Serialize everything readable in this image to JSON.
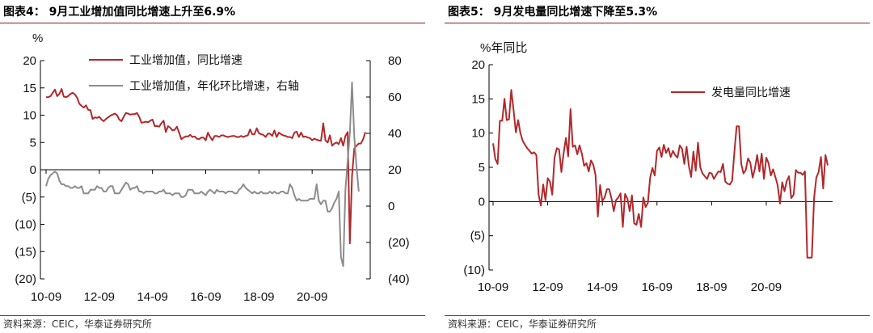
{
  "panels": [
    {
      "title": "图表4：  9月工业增加值同比增速上升至6.9%",
      "source": "资料来源：CEIC，华泰证券研究所",
      "unit_label": "%"
    },
    {
      "title": "图表5：  9月发电量同比增速下降至5.3%",
      "source": "资料来源：CEIC，华泰证券研究所",
      "unit_label": "%年同比"
    }
  ],
  "chart_data": [
    {
      "type": "line",
      "title": "9月工业增加值同比增速上升至6.9%",
      "ylabel": "%",
      "x_start": "2010-09",
      "x_ticks": [
        "10-09",
        "12-09",
        "14-09",
        "16-09",
        "18-09",
        "20-09"
      ],
      "ylim": [
        -20,
        20
      ],
      "yticks": [
        "20",
        "15",
        "10",
        "5",
        "0",
        "(5)",
        "(10)",
        "(15)",
        "(20)"
      ],
      "y2lim": [
        -40,
        80
      ],
      "y2ticks": [
        "80",
        "60",
        "40",
        "20",
        "0",
        "(20)",
        "(40)"
      ],
      "legend_placement": "top-center",
      "series": [
        {
          "name": "工业增加值，同比增速",
          "axis": "left",
          "color": "#b2282b",
          "values": [
            13.3,
            13.3,
            13.5,
            14.1,
            14.7,
            13.5,
            13.9,
            14.8,
            13.4,
            13.3,
            13.5,
            13.9,
            14.1,
            13.8,
            13.2,
            12.1,
            11.7,
            11.4,
            11.8,
            11.0,
            10.9,
            9.3,
            9.6,
            9.5,
            9.7,
            9.2,
            8.9,
            9.3,
            9.6,
            9.9,
            10.1,
            10.3,
            10.0,
            9.2,
            8.9,
            9.7,
            10.4,
            10.3,
            10.1,
            10.2,
            10.2,
            10.4,
            9.7,
            8.6,
            8.7,
            8.8,
            8.7,
            9.0,
            9.2,
            8.0,
            8.0,
            7.9,
            8.5,
            9.0,
            6.9,
            8.0,
            7.7,
            7.2,
            7.3,
            7.9,
            6.8,
            5.6,
            5.9,
            6.1,
            6.1,
            6.4,
            6.0,
            6.1,
            5.7,
            5.6,
            5.9,
            5.9,
            5.4,
            6.8,
            6.0,
            5.4,
            6.2,
            6.2,
            6.0,
            6.3,
            6.3,
            6.1,
            6.0,
            6.1,
            6.2,
            6.2,
            6.0,
            6.0,
            6.2,
            6.0,
            6.2,
            6.3,
            7.4,
            6.5,
            6.5,
            7.6,
            6.7,
            6.5,
            6.4,
            6.0,
            6.6,
            6.6,
            6.2,
            7.2,
            6.0,
            6.8,
            6.5,
            6.3,
            6.2,
            6.0,
            6.0,
            5.8,
            6.8,
            7.0,
            6.0,
            6.8,
            6.0,
            6.1,
            5.9,
            5.8,
            5.4,
            5.7,
            5.5,
            5.4,
            5.3,
            8.5,
            5.4,
            5.0,
            6.3,
            4.4,
            4.8,
            5.0,
            4.7,
            5.8,
            4.4,
            6.2,
            6.9,
            -13.5,
            -1.1,
            3.9,
            4.4,
            4.8,
            4.8,
            5.6,
            6.9
          ]
        },
        {
          "name": "工业增加值，年化环比增速，右轴",
          "axis": "right",
          "color": "#8c8c8c",
          "values": [
            11,
            15,
            17,
            18,
            19,
            18,
            14,
            12,
            12,
            11,
            11,
            10,
            10,
            11,
            10,
            10,
            11,
            7,
            7,
            7,
            9,
            9,
            9,
            11,
            10,
            10,
            8,
            8,
            10,
            11,
            11,
            7,
            7,
            7,
            9,
            11,
            13,
            12,
            9,
            10,
            10,
            11,
            8,
            8,
            7,
            8,
            8,
            8,
            8,
            7,
            7,
            8,
            8,
            9,
            7,
            7,
            7,
            6,
            7,
            7,
            7,
            5,
            5,
            6,
            9,
            9,
            9,
            7,
            7,
            7,
            8,
            7,
            6,
            8,
            9,
            8,
            7,
            9,
            8,
            8,
            8,
            7,
            8,
            8,
            8,
            7,
            7,
            9,
            10,
            12,
            10,
            9,
            8,
            7,
            8,
            7,
            7,
            8,
            7,
            7,
            7,
            8,
            7,
            8,
            7,
            7,
            8,
            8,
            7,
            7,
            12,
            10,
            6,
            3,
            4,
            3,
            3,
            3,
            3,
            4,
            4,
            4,
            12,
            3,
            1,
            3,
            3,
            -3,
            -3,
            -1,
            2,
            4,
            8,
            -28,
            -33,
            9,
            25,
            40,
            68,
            38,
            22,
            8
          ]
        }
      ]
    },
    {
      "type": "line",
      "title": "9月发电量同比增速下降至5.3%",
      "ylabel": "%年同比",
      "x_start": "2010-09",
      "x_ticks": [
        "10-09",
        "12-09",
        "14-09",
        "16-09",
        "18-09",
        "20-09"
      ],
      "ylim": [
        -10,
        20
      ],
      "yticks": [
        "20",
        "15",
        "10",
        "5",
        "0",
        "(5)",
        "(10)"
      ],
      "legend_placement": "top-right",
      "series": [
        {
          "name": "发电量同比增速",
          "color": "#b2282b",
          "values": [
            8.5,
            6.2,
            5.5,
            11.8,
            11.8,
            15.0,
            11.9,
            12.0,
            16.3,
            13.4,
            10.1,
            11.9,
            10.0,
            8.9,
            8.3,
            7.8,
            7.4,
            7.0,
            7.2,
            6.8,
            1.0,
            -0.6,
            2.5,
            0.2,
            3.4,
            2.9,
            1.0,
            6.4,
            7.8,
            7.6,
            4.3,
            7.1,
            9.3,
            6.6,
            13.5,
            8.0,
            8.2,
            6.9,
            8.2,
            7.0,
            5.2,
            5.6,
            4.4,
            6.0,
            5.4,
            3.9,
            -2.2,
            2.4,
            0.1,
            0.6,
            1.8,
            1.8,
            0.5,
            -1.4,
            0.2,
            0.6,
            1.2,
            -3.7,
            1.1,
            0.4,
            -1.4,
            0.9,
            -3.2,
            -3.4,
            -1.8,
            -3.7,
            0.6,
            -0.8,
            -0.2,
            3.5,
            4.9,
            3.8,
            7.4,
            7.9,
            6.5,
            8.3,
            7.1,
            7.8,
            6.5,
            7.4,
            6.8,
            6.4,
            8.2,
            7.7,
            5.5,
            8.0,
            5.2,
            3.6,
            7.3,
            4.5,
            8.6,
            5.0,
            4.1,
            3.7,
            3.3,
            4.2,
            4.1,
            3.3,
            3.9,
            4.4,
            4.3,
            5.5,
            2.9,
            2.6,
            2.5,
            3.0,
            7.2,
            11.0,
            11.0,
            5.5,
            4.1,
            4.6,
            6.3,
            5.7,
            3.5,
            4.8,
            6.8,
            4.4,
            7.0,
            3.3,
            6.4,
            5.6,
            3.8,
            4.7,
            3.6,
            2.4,
            -0.3,
            2.8,
            1.5,
            3.0,
            3.7,
            0.5,
            1.0,
            4.6,
            4.2,
            4.2,
            3.9,
            4.4,
            -8.2,
            -8.2,
            -8.2,
            0.5,
            3.5,
            4.3,
            6.5,
            1.9,
            6.8,
            5.3
          ]
        }
      ]
    }
  ]
}
